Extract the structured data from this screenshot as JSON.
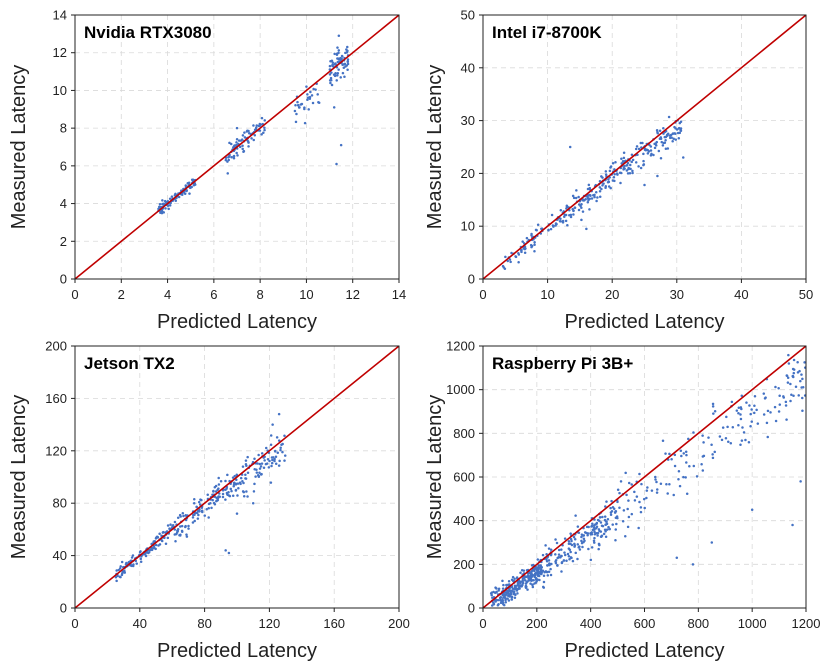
{
  "colors": {
    "points": "#4472c4",
    "diagonal": "#c00000",
    "grid": "#d9d9d9",
    "frame": "#222222"
  },
  "chart_data": [
    {
      "type": "scatter",
      "title": "Nvidia RTX3080",
      "xlabel": "Predicted Latency",
      "ylabel": "Measured Latency",
      "xlim": [
        0,
        14
      ],
      "ylim": [
        0,
        14
      ],
      "xticks": [
        "0",
        "2",
        "4",
        "6",
        "8",
        "10",
        "12",
        "14"
      ],
      "yticks": [
        "0",
        "2",
        "4",
        "6",
        "8",
        "10",
        "12",
        "14"
      ],
      "grid": true,
      "reference_line": "y = x",
      "clusters": [
        {
          "x": [
            3.6,
            5.2
          ],
          "slope": 1.0,
          "offset": 0.0,
          "noise": 0.12,
          "count": 110
        },
        {
          "x": [
            6.5,
            8.2
          ],
          "slope": 1.0,
          "offset": 0.0,
          "noise": 0.25,
          "count": 80
        },
        {
          "x": [
            9.5,
            10.6
          ],
          "slope": 0.95,
          "offset": 0.0,
          "noise": 0.35,
          "count": 30
        },
        {
          "x": [
            11.0,
            11.8
          ],
          "slope": 1.0,
          "offset": 0.0,
          "noise": 0.4,
          "count": 70
        }
      ],
      "outliers": [
        [
          6.6,
          5.6
        ],
        [
          11.3,
          6.1
        ],
        [
          11.5,
          7.1
        ],
        [
          11.2,
          9.1
        ],
        [
          11.4,
          12.9
        ],
        [
          10.0,
          10.2
        ],
        [
          7.0,
          8.0
        ]
      ]
    },
    {
      "type": "scatter",
      "title": "Intel i7-8700K",
      "xlabel": "Predicted Latency",
      "ylabel": "Measured Latency",
      "xlim": [
        0,
        50
      ],
      "ylim": [
        0,
        50
      ],
      "xticks": [
        "0",
        "10",
        "20",
        "30",
        "40",
        "50"
      ],
      "yticks": [
        "0",
        "10",
        "20",
        "30",
        "40",
        "50"
      ],
      "grid": true,
      "reference_line": "y = x",
      "clusters": [
        {
          "x": [
            3,
            12
          ],
          "slope": 1.0,
          "offset": -0.3,
          "noise": 0.8,
          "count": 70
        },
        {
          "x": [
            12,
            22
          ],
          "slope": 0.97,
          "offset": 0.0,
          "noise": 1.3,
          "count": 130
        },
        {
          "x": [
            22,
            31
          ],
          "slope": 0.95,
          "offset": 0.0,
          "noise": 1.5,
          "count": 110
        }
      ],
      "outliers": [
        [
          13.5,
          25.0
        ],
        [
          27.0,
          19.5
        ],
        [
          31.0,
          23.0
        ],
        [
          16.0,
          9.5
        ],
        [
          25.0,
          17.8
        ]
      ]
    },
    {
      "type": "scatter",
      "title": "Jetson TX2",
      "xlabel": "Predicted Latency",
      "ylabel": "Measured Latency",
      "xlim": [
        0,
        200
      ],
      "ylim": [
        0,
        200
      ],
      "xticks": [
        "0",
        "40",
        "80",
        "120",
        "160",
        "200"
      ],
      "yticks": [
        "0",
        "40",
        "80",
        "120",
        "160",
        "200"
      ],
      "grid": true,
      "reference_line": "y = x",
      "clusters": [
        {
          "x": [
            24,
            60
          ],
          "slope": 1.0,
          "offset": 0.0,
          "noise": 2.5,
          "count": 130
        },
        {
          "x": [
            60,
            100
          ],
          "slope": 0.97,
          "offset": 0.0,
          "noise": 5.0,
          "count": 140
        },
        {
          "x": [
            100,
            130
          ],
          "slope": 0.95,
          "offset": 0.0,
          "noise": 7.0,
          "count": 90
        }
      ],
      "outliers": [
        [
          93,
          44
        ],
        [
          95,
          42
        ],
        [
          100,
          72
        ],
        [
          110,
          80
        ],
        [
          126,
          148
        ],
        [
          122,
          140
        ]
      ]
    },
    {
      "type": "scatter",
      "title": "Raspberry Pi 3B+",
      "xlabel": "Predicted Latency",
      "ylabel": "Measured Latency",
      "xlim": [
        0,
        1200
      ],
      "ylim": [
        0,
        1200
      ],
      "xticks": [
        "0",
        "200",
        "400",
        "600",
        "800",
        "1000",
        "1200"
      ],
      "yticks": [
        "0",
        "200",
        "400",
        "600",
        "800",
        "1000",
        "1200"
      ],
      "grid": true,
      "reference_line": "y = x",
      "clusters": [
        {
          "x": [
            30,
            220
          ],
          "slope": 0.8,
          "offset": 0.0,
          "noise": 25,
          "count": 260
        },
        {
          "x": [
            220,
            500
          ],
          "slope": 0.85,
          "offset": 0.0,
          "noise": 40,
          "count": 200
        },
        {
          "x": [
            500,
            1200
          ],
          "slope": 0.9,
          "offset": 0.0,
          "noise": 70,
          "count": 170
        }
      ],
      "outliers": [
        [
          850,
          300
        ],
        [
          720,
          230
        ],
        [
          1000,
          450
        ],
        [
          1150,
          380
        ],
        [
          780,
          200
        ],
        [
          640,
          600
        ],
        [
          1100,
          900
        ],
        [
          1180,
          580
        ]
      ]
    }
  ]
}
